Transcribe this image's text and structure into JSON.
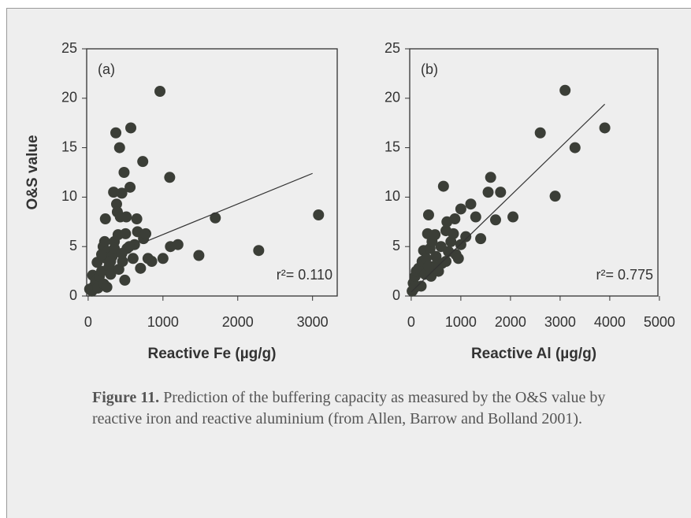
{
  "chart_data": [
    {
      "type": "scatter",
      "panel_label": "(a)",
      "annotation": "r²= 0.110",
      "xlabel": "Reactive Fe (µg/g)",
      "ylabel": "O&S value",
      "xlim": [
        -20,
        3330
      ],
      "ylim": [
        0,
        25
      ],
      "xticks": [
        0,
        1000,
        2000,
        3000
      ],
      "yticks": [
        0,
        5,
        10,
        15,
        20,
        25
      ],
      "color": "#3b3e37",
      "x": [
        20,
        50,
        60,
        80,
        100,
        120,
        130,
        150,
        180,
        200,
        210,
        220,
        230,
        240,
        250,
        260,
        280,
        300,
        320,
        340,
        350,
        370,
        380,
        390,
        400,
        410,
        420,
        430,
        450,
        460,
        480,
        490,
        500,
        510,
        520,
        560,
        570,
        600,
        620,
        650,
        660,
        700,
        730,
        740,
        770,
        800,
        850,
        960,
        1000,
        1090,
        1100,
        1200,
        1480,
        1700,
        2280,
        3080,
        300,
        350,
        550,
        450,
        180
      ],
      "y": [
        0.7,
        0.5,
        2.1,
        1.0,
        1.5,
        3.4,
        0.8,
        2.0,
        2.5,
        5.0,
        1.2,
        5.5,
        7.8,
        3.8,
        0.9,
        4.5,
        3.0,
        2.2,
        4.0,
        10.5,
        5.5,
        16.5,
        9.3,
        8.5,
        6.2,
        2.7,
        15.0,
        8.0,
        10.4,
        3.5,
        12.5,
        1.6,
        6.3,
        8.0,
        4.8,
        11.0,
        17.0,
        3.8,
        5.2,
        7.8,
        6.5,
        2.8,
        13.6,
        5.8,
        6.3,
        3.8,
        3.5,
        20.7,
        3.8,
        12.0,
        5.0,
        5.2,
        4.1,
        7.9,
        4.6,
        8.2,
        3.5,
        4.8,
        5.0,
        4.3,
        4.2
      ],
      "fit": {
        "x": [
          800,
          3000
        ],
        "y": [
          5.6,
          12.4
        ]
      }
    },
    {
      "type": "scatter",
      "panel_label": "(b)",
      "annotation": "r²= 0.775",
      "xlabel": "Reactive Al (µg/g)",
      "xlim": [
        -30,
        4970
      ],
      "ylim": [
        0,
        25
      ],
      "xticks": [
        0,
        1000,
        2000,
        3000,
        4000,
        5000
      ],
      "yticks": [
        0,
        5,
        10,
        15,
        20,
        25
      ],
      "color": "#3b3e37",
      "x": [
        20,
        40,
        60,
        80,
        100,
        150,
        200,
        220,
        250,
        280,
        300,
        330,
        350,
        380,
        400,
        420,
        450,
        480,
        500,
        550,
        600,
        620,
        650,
        700,
        720,
        750,
        800,
        850,
        880,
        900,
        950,
        1000,
        1000,
        1100,
        1200,
        1300,
        1400,
        1550,
        1600,
        1700,
        1800,
        2050,
        2600,
        2900,
        3100,
        3300,
        3900,
        500,
        350,
        700
      ],
      "y": [
        0.5,
        1.3,
        0.8,
        2.0,
        2.5,
        2.8,
        1.0,
        3.5,
        4.6,
        2.2,
        3.8,
        6.3,
        8.2,
        4.8,
        2.0,
        5.5,
        3.0,
        6.2,
        4.0,
        2.5,
        5.0,
        3.3,
        11.1,
        6.6,
        7.5,
        4.5,
        5.5,
        6.3,
        7.8,
        4.2,
        3.8,
        8.8,
        5.2,
        6.0,
        9.3,
        8.0,
        5.8,
        10.5,
        12.0,
        7.7,
        10.5,
        8.0,
        16.5,
        10.1,
        20.8,
        15.0,
        17.0,
        2.8,
        3.0,
        3.5
      ],
      "fit": {
        "x": [
          0,
          3900
        ],
        "y": [
          0.4,
          19.4
        ]
      }
    }
  ],
  "caption": {
    "label": "Figure 11.",
    "text": " Prediction of the buffering capacity as measured by the O&S value by reactive iron and reactive aluminium (from Allen, Barrow and Bolland 2001)."
  }
}
